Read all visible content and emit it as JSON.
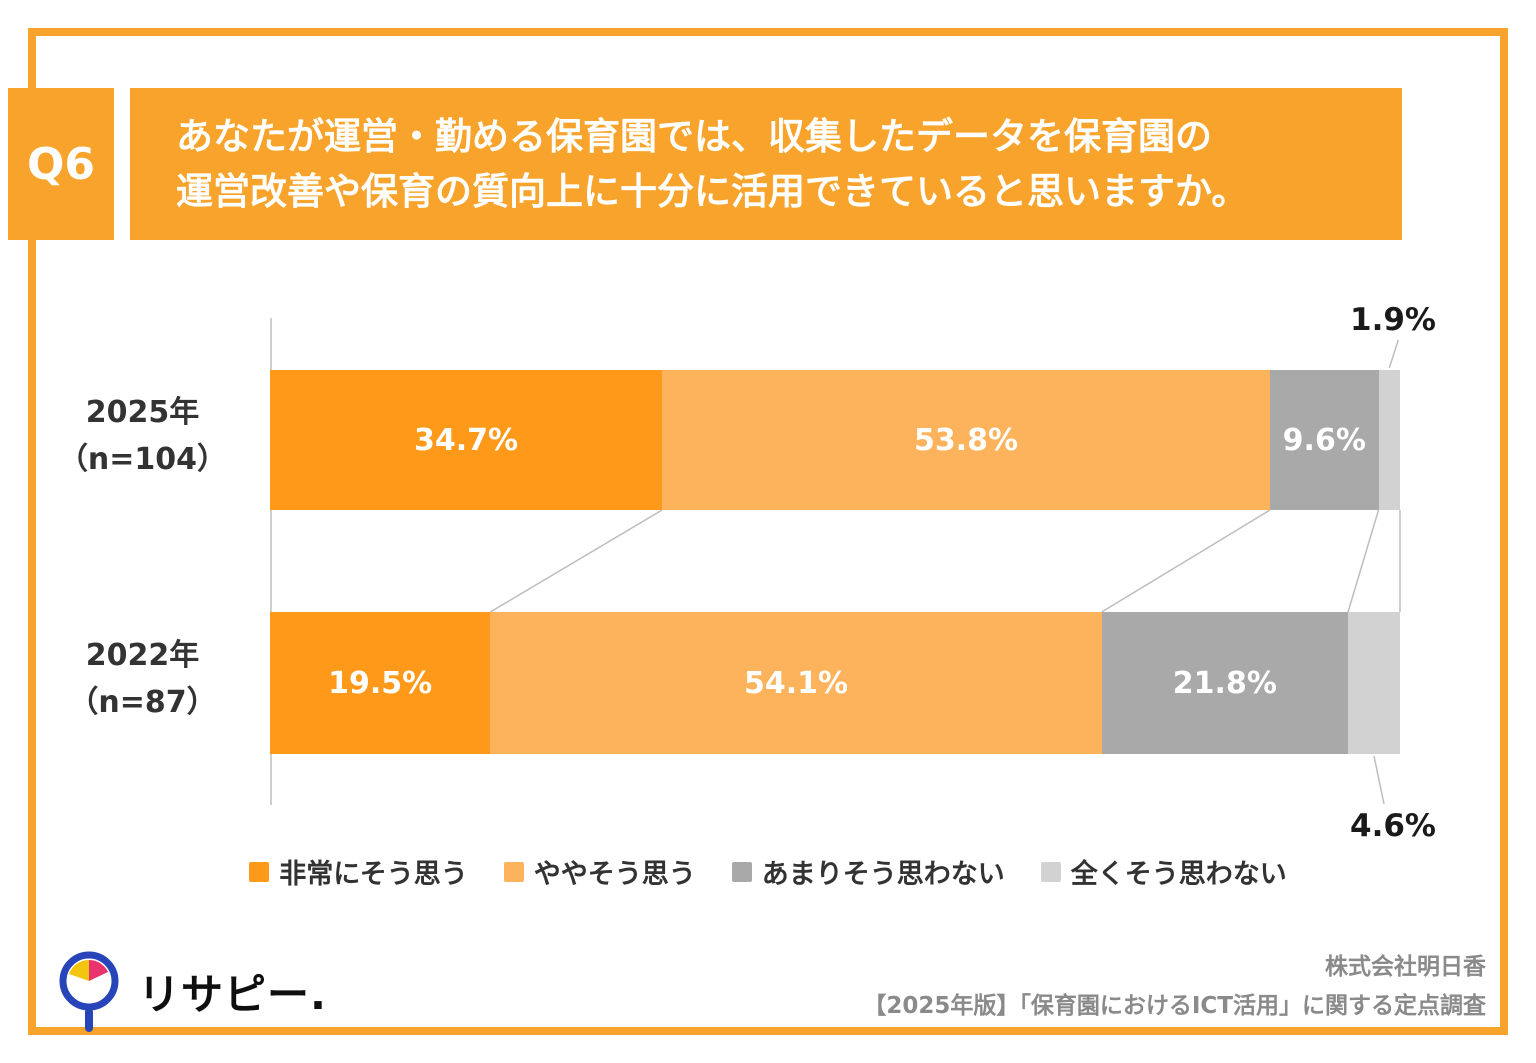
{
  "header": {
    "q_label": "Q6",
    "question_line1": "あなたが運営・勤める保育園では、収集したデータを保育園の",
    "question_line2": "運営改善や保育の質向上に十分に活用できていると思いますか。"
  },
  "chart_data": {
    "type": "bar",
    "stacked": true,
    "orientation": "horizontal",
    "unit": "%",
    "x_max": 100,
    "categories": [
      "非常にそう思う",
      "ややそう思う",
      "あまりそう思わない",
      "全くそう思わない"
    ],
    "colors": [
      "#FF9919",
      "#FDB35C",
      "#A9A9A9",
      "#D2D2D2"
    ],
    "rows": [
      {
        "label": "2025年",
        "sublabel": "（n=104）",
        "values": [
          34.7,
          53.8,
          9.6,
          1.9
        ],
        "outside_label_position": "above"
      },
      {
        "label": "2022年",
        "sublabel": "（n=87）",
        "values": [
          19.5,
          54.1,
          21.8,
          4.6
        ],
        "outside_label_position": "below"
      }
    ],
    "legend_position": "bottom",
    "grid": false
  },
  "footer": {
    "brand": "リサピー.",
    "source_line1": "株式会社明日香",
    "source_line2": "【2025年版】「保育園におけるICT活用」に関する定点調査"
  }
}
